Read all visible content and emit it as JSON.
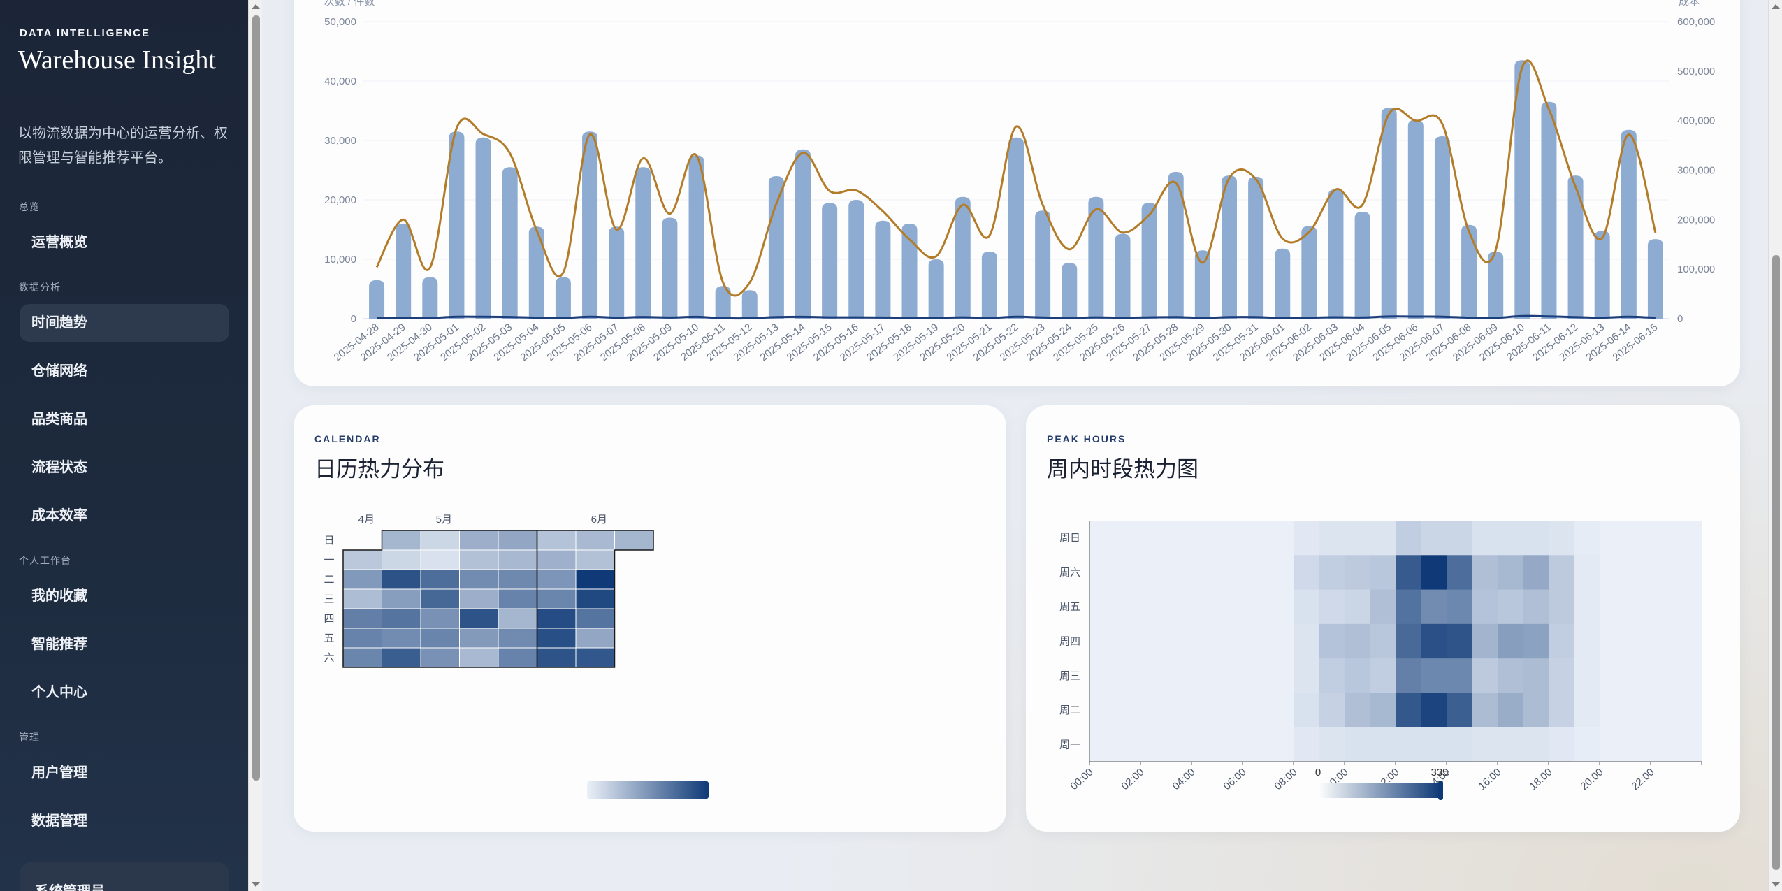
{
  "sidebar": {
    "eyebrow": "DATA INTELLIGENCE",
    "title": "Warehouse Insight",
    "description": "以物流数据为中心的运营分析、权限管理与智能推荐平台。",
    "sections": [
      {
        "label": "总览",
        "items": [
          {
            "label": "运营概览",
            "active": false
          }
        ]
      },
      {
        "label": "数据分析",
        "items": [
          {
            "label": "时间趋势",
            "active": true
          },
          {
            "label": "仓储网络",
            "active": false
          },
          {
            "label": "品类商品",
            "active": false
          },
          {
            "label": "流程状态",
            "active": false
          },
          {
            "label": "成本效率",
            "active": false
          }
        ]
      },
      {
        "label": "个人工作台",
        "items": [
          {
            "label": "我的收藏",
            "active": false
          },
          {
            "label": "智能推荐",
            "active": false
          },
          {
            "label": "个人中心",
            "active": false
          }
        ]
      },
      {
        "label": "管理",
        "items": [
          {
            "label": "用户管理",
            "active": false
          },
          {
            "label": "数据管理",
            "active": false
          }
        ]
      }
    ],
    "user_role": "系统管理员"
  },
  "trend_card": {
    "chart_data": {
      "type": "bar",
      "left_axis_label": "次数 / 件数",
      "right_axis_label": "成本",
      "ylim_left": [
        0,
        50000
      ],
      "ylim_right": [
        0,
        600000
      ],
      "left_ticks": [
        "0",
        "10,000",
        "20,000",
        "30,000",
        "40,000",
        "50,000"
      ],
      "right_ticks": [
        "0",
        "100,000",
        "200,000",
        "300,000",
        "400,000",
        "500,000",
        "600,000"
      ],
      "categories": [
        "2025-04-28",
        "2025-04-29",
        "2025-04-30",
        "2025-05-01",
        "2025-05-02",
        "2025-05-03",
        "2025-05-04",
        "2025-05-05",
        "2025-05-06",
        "2025-05-07",
        "2025-05-08",
        "2025-05-09",
        "2025-05-10",
        "2025-05-11",
        "2025-05-12",
        "2025-05-13",
        "2025-05-14",
        "2025-05-15",
        "2025-05-16",
        "2025-05-17",
        "2025-05-18",
        "2025-05-19",
        "2025-05-20",
        "2025-05-21",
        "2025-05-22",
        "2025-05-23",
        "2025-05-24",
        "2025-05-25",
        "2025-05-26",
        "2025-05-27",
        "2025-05-28",
        "2025-05-29",
        "2025-05-30",
        "2025-05-31",
        "2025-06-01",
        "2025-06-02",
        "2025-06-03",
        "2025-06-04",
        "2025-06-05",
        "2025-06-06",
        "2025-06-07",
        "2025-06-08",
        "2025-06-09",
        "2025-06-10",
        "2025-06-11",
        "2025-06-12",
        "2025-06-13",
        "2025-06-14",
        "2025-06-15"
      ],
      "series": [
        {
          "kind": "bar",
          "axis": "left",
          "color": "#8eabd2",
          "values": [
            6500,
            16000,
            7000,
            31500,
            30500,
            25500,
            15500,
            7000,
            31500,
            15500,
            25500,
            17000,
            27500,
            5500,
            4800,
            24000,
            28500,
            19500,
            20000,
            16500,
            16000,
            10000,
            20500,
            11300,
            30500,
            18200,
            9400,
            20500,
            14300,
            19500,
            24700,
            11500,
            24100,
            23900,
            11800,
            15600,
            21800,
            18000,
            35500,
            33500,
            30700,
            15800,
            11300,
            43500,
            36500,
            24100,
            14800,
            31800,
            13400
          ]
        },
        {
          "kind": "line",
          "axis": "right",
          "color": "#b27c28",
          "values": [
            104000,
            200000,
            103000,
            385000,
            373000,
            334000,
            179000,
            93000,
            372000,
            180000,
            324000,
            212000,
            330000,
            73000,
            73000,
            232000,
            335000,
            258000,
            259000,
            217000,
            160000,
            126000,
            230000,
            168000,
            388000,
            230000,
            140000,
            221000,
            174000,
            210000,
            274000,
            113000,
            284000,
            282000,
            162000,
            175000,
            261000,
            230000,
            414000,
            400000,
            393000,
            176000,
            138000,
            508000,
            423000,
            266000,
            163000,
            372000,
            174000
          ]
        },
        {
          "kind": "line",
          "axis": "left",
          "color": "#1c3f7c",
          "values": [
            100,
            150,
            120,
            330,
            320,
            280,
            170,
            100,
            330,
            170,
            280,
            190,
            300,
            80,
            70,
            260,
            310,
            220,
            220,
            190,
            170,
            120,
            220,
            130,
            320,
            200,
            110,
            220,
            160,
            220,
            270,
            130,
            260,
            260,
            130,
            170,
            240,
            200,
            370,
            350,
            330,
            170,
            130,
            450,
            380,
            260,
            160,
            330,
            150
          ]
        }
      ]
    }
  },
  "calendar_card": {
    "eyebrow": "CALENDAR",
    "title": "日历热力分布",
    "chart_data": {
      "type": "heatmap",
      "weekday_labels": [
        "日",
        "一",
        "二",
        "三",
        "四",
        "五",
        "六"
      ],
      "month_labels": [
        {
          "label": "4月",
          "week": 0.5
        },
        {
          "label": "5月",
          "week": 2.5
        },
        {
          "label": "6月",
          "week": 6.5
        }
      ],
      "start_date": "2025-04-28",
      "end_date": "2025-06-15",
      "color_low": "#ebf0f8",
      "color_high": "#0f3a77",
      "weeks": [
        [
          null,
          0.22,
          0.48,
          0.28,
          0.62,
          0.6,
          0.58
        ],
        [
          0.32,
          0.14,
          0.87,
          0.45,
          0.68,
          0.55,
          0.8
        ],
        [
          0.14,
          0.08,
          0.72,
          0.75,
          0.52,
          0.59,
          0.52
        ],
        [
          0.36,
          0.26,
          0.55,
          0.36,
          0.86,
          0.47,
          0.3
        ],
        [
          0.4,
          0.31,
          0.57,
          0.6,
          0.32,
          0.56,
          0.6
        ],
        [
          0.25,
          0.35,
          0.5,
          0.58,
          0.9,
          0.88,
          0.86
        ],
        [
          0.3,
          0.26,
          1.0,
          0.92,
          0.68,
          0.4,
          0.84
        ],
        [
          0.32,
          null,
          null,
          null,
          null,
          null,
          null
        ]
      ]
    }
  },
  "peak_card": {
    "eyebrow": "PEAK HOURS",
    "title": "周内时段热力图",
    "chart_data": {
      "type": "heatmap",
      "y_labels": [
        "周日",
        "周六",
        "周五",
        "周四",
        "周三",
        "周二",
        "周一"
      ],
      "x_ticks": [
        "00:00",
        "02:00",
        "04:00",
        "06:00",
        "08:00",
        "10:00",
        "12:00",
        "14:00",
        "16:00",
        "18:00",
        "20:00",
        "22:00"
      ],
      "visual_min": "0",
      "visual_max": "335",
      "color_low": "#eef3fb",
      "color_high": "#0f3a77",
      "rows": [
        [
          0.02,
          0.02,
          0.02,
          0.02,
          0.02,
          0.02,
          0.02,
          0.02,
          0.06,
          0.08,
          0.08,
          0.08,
          0.2,
          0.16,
          0.16,
          0.1,
          0.1,
          0.1,
          0.08,
          0.04,
          0.02,
          0.02,
          0.02,
          0.02
        ],
        [
          0.02,
          0.02,
          0.02,
          0.02,
          0.02,
          0.02,
          0.02,
          0.02,
          0.14,
          0.2,
          0.22,
          0.24,
          0.82,
          1.0,
          0.72,
          0.28,
          0.32,
          0.4,
          0.22,
          0.05,
          0.02,
          0.02,
          0.02,
          0.02
        ],
        [
          0.02,
          0.02,
          0.02,
          0.02,
          0.02,
          0.02,
          0.02,
          0.02,
          0.1,
          0.14,
          0.16,
          0.28,
          0.7,
          0.56,
          0.58,
          0.26,
          0.24,
          0.28,
          0.22,
          0.05,
          0.02,
          0.02,
          0.02,
          0.02
        ],
        [
          0.02,
          0.02,
          0.02,
          0.02,
          0.02,
          0.02,
          0.02,
          0.02,
          0.08,
          0.26,
          0.28,
          0.24,
          0.74,
          0.88,
          0.86,
          0.34,
          0.46,
          0.44,
          0.2,
          0.05,
          0.02,
          0.02,
          0.02,
          0.02
        ],
        [
          0.02,
          0.02,
          0.02,
          0.02,
          0.02,
          0.02,
          0.02,
          0.02,
          0.08,
          0.2,
          0.24,
          0.2,
          0.62,
          0.58,
          0.58,
          0.22,
          0.28,
          0.3,
          0.18,
          0.05,
          0.02,
          0.02,
          0.02,
          0.02
        ],
        [
          0.02,
          0.02,
          0.02,
          0.02,
          0.02,
          0.02,
          0.02,
          0.02,
          0.1,
          0.18,
          0.28,
          0.32,
          0.84,
          0.94,
          0.8,
          0.3,
          0.38,
          0.3,
          0.18,
          0.05,
          0.02,
          0.02,
          0.02,
          0.02
        ],
        [
          0.02,
          0.02,
          0.02,
          0.02,
          0.02,
          0.02,
          0.02,
          0.02,
          0.06,
          0.08,
          0.1,
          0.1,
          0.1,
          0.1,
          0.1,
          0.08,
          0.08,
          0.08,
          0.06,
          0.03,
          0.02,
          0.02,
          0.02,
          0.02
        ]
      ]
    }
  }
}
